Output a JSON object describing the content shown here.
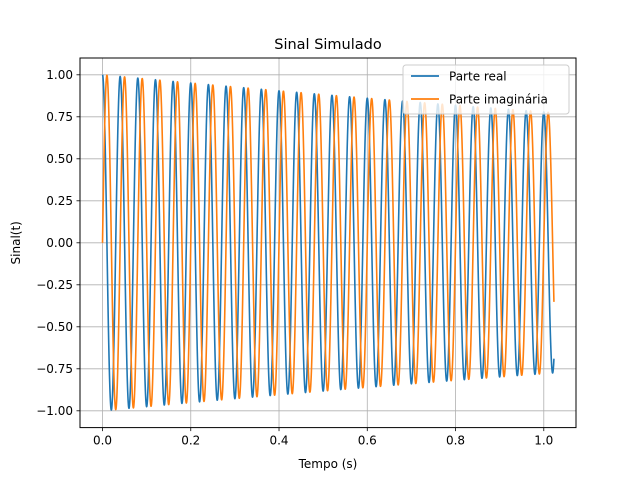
{
  "chart_data": {
    "type": "line",
    "title": "Sinal Simulado",
    "xlabel": "Tempo (s)",
    "ylabel": "Sinal(t)",
    "xlim": [
      -0.051,
      1.073
    ],
    "ylim": [
      -1.1,
      1.1
    ],
    "xticks": [
      0.0,
      0.2,
      0.4,
      0.6,
      0.8,
      1.0
    ],
    "xtick_labels": [
      "0.0",
      "0.2",
      "0.4",
      "0.6",
      "0.8",
      "1.0"
    ],
    "yticks": [
      -1.0,
      -0.75,
      -0.5,
      -0.25,
      0.0,
      0.25,
      0.5,
      0.75,
      1.0
    ],
    "ytick_labels": [
      "−1.00",
      "−0.75",
      "−0.50",
      "−0.25",
      "0.00",
      "0.25",
      "0.50",
      "0.75",
      "1.00"
    ],
    "grid": true,
    "legend_position": "top-right",
    "signal": {
      "t_start": 0.0,
      "t_end": 1.023,
      "frequency_hz": 25,
      "decay_per_s": 0.25
    },
    "series": [
      {
        "name": "Parte real",
        "component": "cos",
        "color": "#1f77b4"
      },
      {
        "name": "Parte imaginária",
        "component": "sin",
        "color": "#ff7f0e"
      }
    ],
    "grid_color": "#b0b0b0",
    "frame_color": "#000000"
  }
}
